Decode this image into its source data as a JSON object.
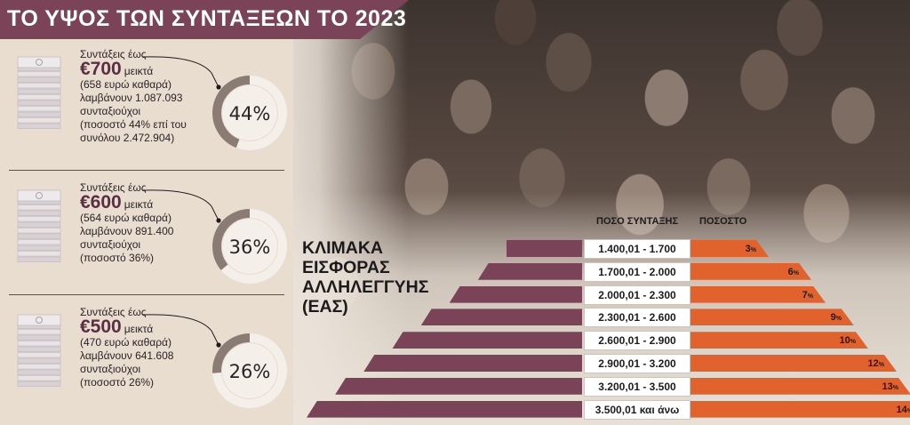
{
  "title": "ΤΟ ΥΨΟΣ ΤΩΝ ΣΥΝΤΑΞΕΩΝ ΤΟ 2023",
  "colors": {
    "accent": "#7a4357",
    "orange": "#e2622d",
    "ring_gray": "#8a7b75",
    "ring_light": "#f4efe9"
  },
  "pensions": [
    {
      "label": "Συντάξεις έως",
      "amount": "€700",
      "amount_unit": "μεικτά",
      "lines": [
        "(658 ευρώ καθαρά)",
        "λαμβάνουν 1.087.093",
        "συνταξιούχοι",
        "(ποσοστό 44% επί του",
        "συνόλου 2.472.904)"
      ],
      "percent": 44,
      "percent_label": "44%"
    },
    {
      "label": "Συντάξεις έως",
      "amount": "€600",
      "amount_unit": "μεικτά",
      "lines": [
        "(564 ευρώ καθαρά)",
        "λαμβάνουν 891.400",
        "συνταξιούχοι",
        "(ποσοστό 36%)"
      ],
      "percent": 36,
      "percent_label": "36%"
    },
    {
      "label": "Συντάξεις έως",
      "amount": "€500",
      "amount_unit": "μεικτά",
      "lines": [
        "(470 ευρώ καθαρά)",
        "λαμβάνουν 641.608",
        "συνταξιούχοι",
        "(ποσοστό 26%)"
      ],
      "percent": 26,
      "percent_label": "26%"
    }
  ],
  "chart_data": {
    "type": "table",
    "title": "ΚΛΙΜΑΚΑ ΕΙΣΦΟΡΑΣ ΑΛΛΗΛΕΓΓΥΗΣ (ΕΑΣ)",
    "title_lines": [
      "ΚΛΙΜΑΚΑ",
      "ΕΙΣΦΟΡΑΣ",
      "ΑΛΛΗΛΕΓΓΥΗΣ",
      "(ΕΑΣ)"
    ],
    "columns": [
      "ΠΟΣΟ ΣΥΝΤΑΞΗΣ",
      "ΠΟΣΟΣΤΟ"
    ],
    "rows": [
      {
        "range": "1.400,01 - 1.700",
        "percent": 3
      },
      {
        "range": "1.700,01 - 2.000",
        "percent": 6
      },
      {
        "range": "2.000,01 - 2.300",
        "percent": 7
      },
      {
        "range": "2.300,01 - 2.600",
        "percent": 9
      },
      {
        "range": "2.600,01 - 2.900",
        "percent": 10
      },
      {
        "range": "2.900,01 - 3.200",
        "percent": 12
      },
      {
        "range": "3.200,01 - 3.500",
        "percent": 13
      },
      {
        "range": "3.500,01 και άνω",
        "percent": 14
      }
    ],
    "percent_suffix": "%"
  }
}
